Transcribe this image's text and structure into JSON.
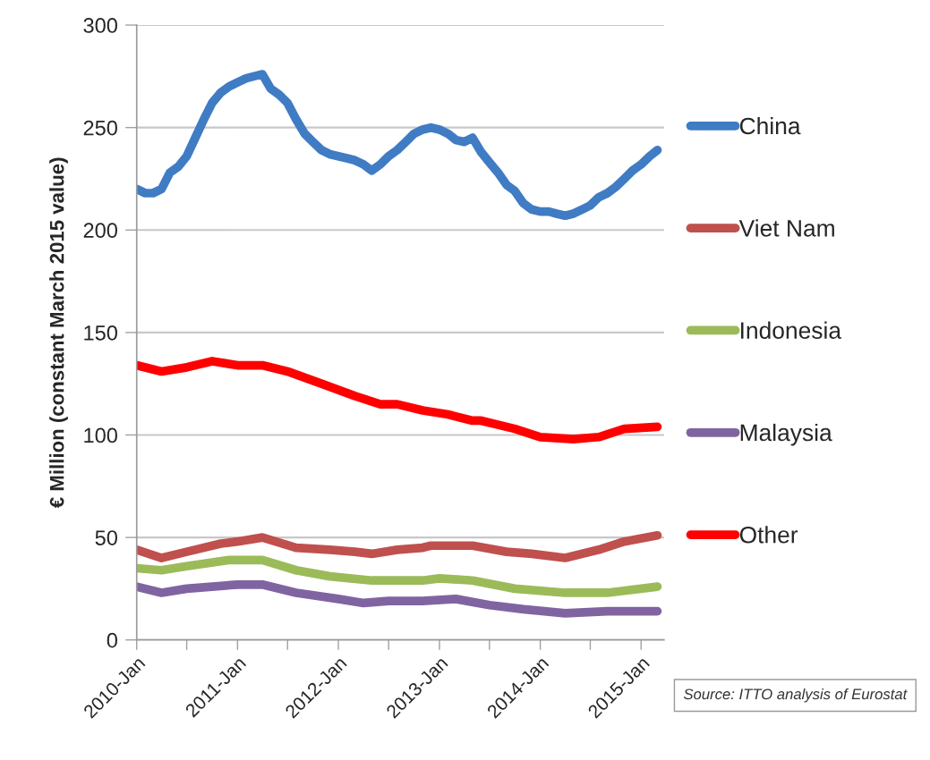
{
  "chart_data": {
    "type": "line",
    "ylabel": "€ Million (constant March 2015 value)",
    "xlim": [
      "2010-01",
      "2015-03-25"
    ],
    "ylim": [
      0,
      300
    ],
    "yticks": [
      0,
      50,
      100,
      150,
      200,
      250,
      300
    ],
    "xticks": [
      {
        "value": "2010-01",
        "label": "2010-Jan"
      },
      {
        "value": "2010-07",
        "label": null
      },
      {
        "value": "2011-01",
        "label": "2011-Jan"
      },
      {
        "value": "2011-07",
        "label": null
      },
      {
        "value": "2012-01",
        "label": "2012-Jan"
      },
      {
        "value": "2012-07",
        "label": null
      },
      {
        "value": "2013-01",
        "label": "2013-Jan"
      },
      {
        "value": "2013-07",
        "label": null
      },
      {
        "value": "2014-01",
        "label": "2014-Jan"
      },
      {
        "value": "2014-07",
        "label": null
      },
      {
        "value": "2015-01",
        "label": "2015-Jan"
      }
    ],
    "grid": "y",
    "legend": "right",
    "line_style": "solid",
    "annotations": [
      "Source: ITTO analysis of Eurostat"
    ],
    "series": [
      {
        "name": "China",
        "color": "#3f7cc4",
        "x": [
          "2010-01",
          "2010-02",
          "2010-03",
          "2010-04",
          "2010-05",
          "2010-06",
          "2010-07",
          "2010-08",
          "2010-09",
          "2010-10",
          "2010-11",
          "2010-12",
          "2011-01",
          "2011-02",
          "2011-03",
          "2011-04",
          "2011-05",
          "2011-06",
          "2011-07",
          "2011-08",
          "2011-09",
          "2011-10",
          "2011-11",
          "2011-12",
          "2012-01",
          "2012-02",
          "2012-03",
          "2012-04",
          "2012-05",
          "2012-06",
          "2012-07",
          "2012-08",
          "2012-09",
          "2012-10",
          "2012-11",
          "2012-12",
          "2013-01",
          "2013-02",
          "2013-03",
          "2013-04",
          "2013-05",
          "2013-06",
          "2013-07",
          "2013-08",
          "2013-09",
          "2013-10",
          "2013-11",
          "2013-12",
          "2014-01",
          "2014-02",
          "2014-03",
          "2014-04",
          "2014-05",
          "2014-06",
          "2014-07",
          "2014-08",
          "2014-09",
          "2014-10",
          "2014-11",
          "2014-12",
          "2015-01",
          "2015-02",
          "2015-03"
        ],
        "values": [
          220,
          218,
          218,
          220,
          228,
          231,
          236,
          245,
          254,
          262,
          267,
          270,
          272,
          274,
          275,
          276,
          269,
          266,
          262,
          254,
          247,
          243,
          239,
          237,
          236,
          235,
          234,
          232,
          229,
          232,
          236,
          239,
          243,
          247,
          249,
          250,
          249,
          247,
          244,
          243,
          245,
          238,
          233,
          228,
          222,
          219,
          213,
          210,
          209,
          209,
          208,
          207,
          208,
          210,
          212,
          216,
          218,
          221,
          225,
          229,
          232,
          236,
          239
        ]
      },
      {
        "name": "Viet Nam",
        "color": "#c0504d",
        "x": [
          "2010-01",
          "2010-04",
          "2010-07",
          "2010-11",
          "2011-01",
          "2011-04",
          "2011-08",
          "2011-12",
          "2012-03",
          "2012-05",
          "2012-08",
          "2012-11",
          "2012-12",
          "2013-05",
          "2013-09",
          "2013-12",
          "2014-04",
          "2014-08",
          "2014-11",
          "2015-03"
        ],
        "values": [
          44,
          40,
          43,
          47,
          48,
          50,
          45,
          44,
          43,
          42,
          44,
          45,
          46,
          46,
          43,
          42,
          40,
          44,
          48,
          51
        ]
      },
      {
        "name": "Indonesia",
        "color": "#9bbb59",
        "x": [
          "2010-01",
          "2010-04",
          "2010-07",
          "2010-12",
          "2011-04",
          "2011-08",
          "2011-12",
          "2012-05",
          "2012-11",
          "2013-01",
          "2013-05",
          "2013-10",
          "2014-04",
          "2014-09",
          "2015-03"
        ],
        "values": [
          35,
          34,
          36,
          39,
          39,
          34,
          31,
          29,
          29,
          30,
          29,
          25,
          23,
          23,
          26
        ]
      },
      {
        "name": "Malaysia",
        "color": "#8064a2",
        "x": [
          "2010-01",
          "2010-04",
          "2010-07",
          "2011-01",
          "2011-04",
          "2011-08",
          "2012-01",
          "2012-04",
          "2012-07",
          "2012-11",
          "2013-03",
          "2013-07",
          "2013-11",
          "2014-04",
          "2014-09",
          "2015-03"
        ],
        "values": [
          26,
          23,
          25,
          27,
          27,
          23,
          20,
          18,
          19,
          19,
          20,
          17,
          15,
          13,
          14,
          14
        ]
      },
      {
        "name": "Other",
        "color": "#ff0000",
        "x": [
          "2010-01",
          "2010-04",
          "2010-07",
          "2010-10",
          "2011-01",
          "2011-04",
          "2011-07",
          "2011-11",
          "2012-03",
          "2012-06",
          "2012-08",
          "2012-11",
          "2013-02",
          "2013-05",
          "2013-06",
          "2013-10",
          "2014-01",
          "2014-05",
          "2014-08",
          "2014-11",
          "2015-03"
        ],
        "values": [
          134,
          131,
          133,
          136,
          134,
          134,
          131,
          125,
          119,
          115,
          115,
          112,
          110,
          107,
          107,
          103,
          99,
          98,
          99,
          103,
          104
        ]
      }
    ]
  }
}
